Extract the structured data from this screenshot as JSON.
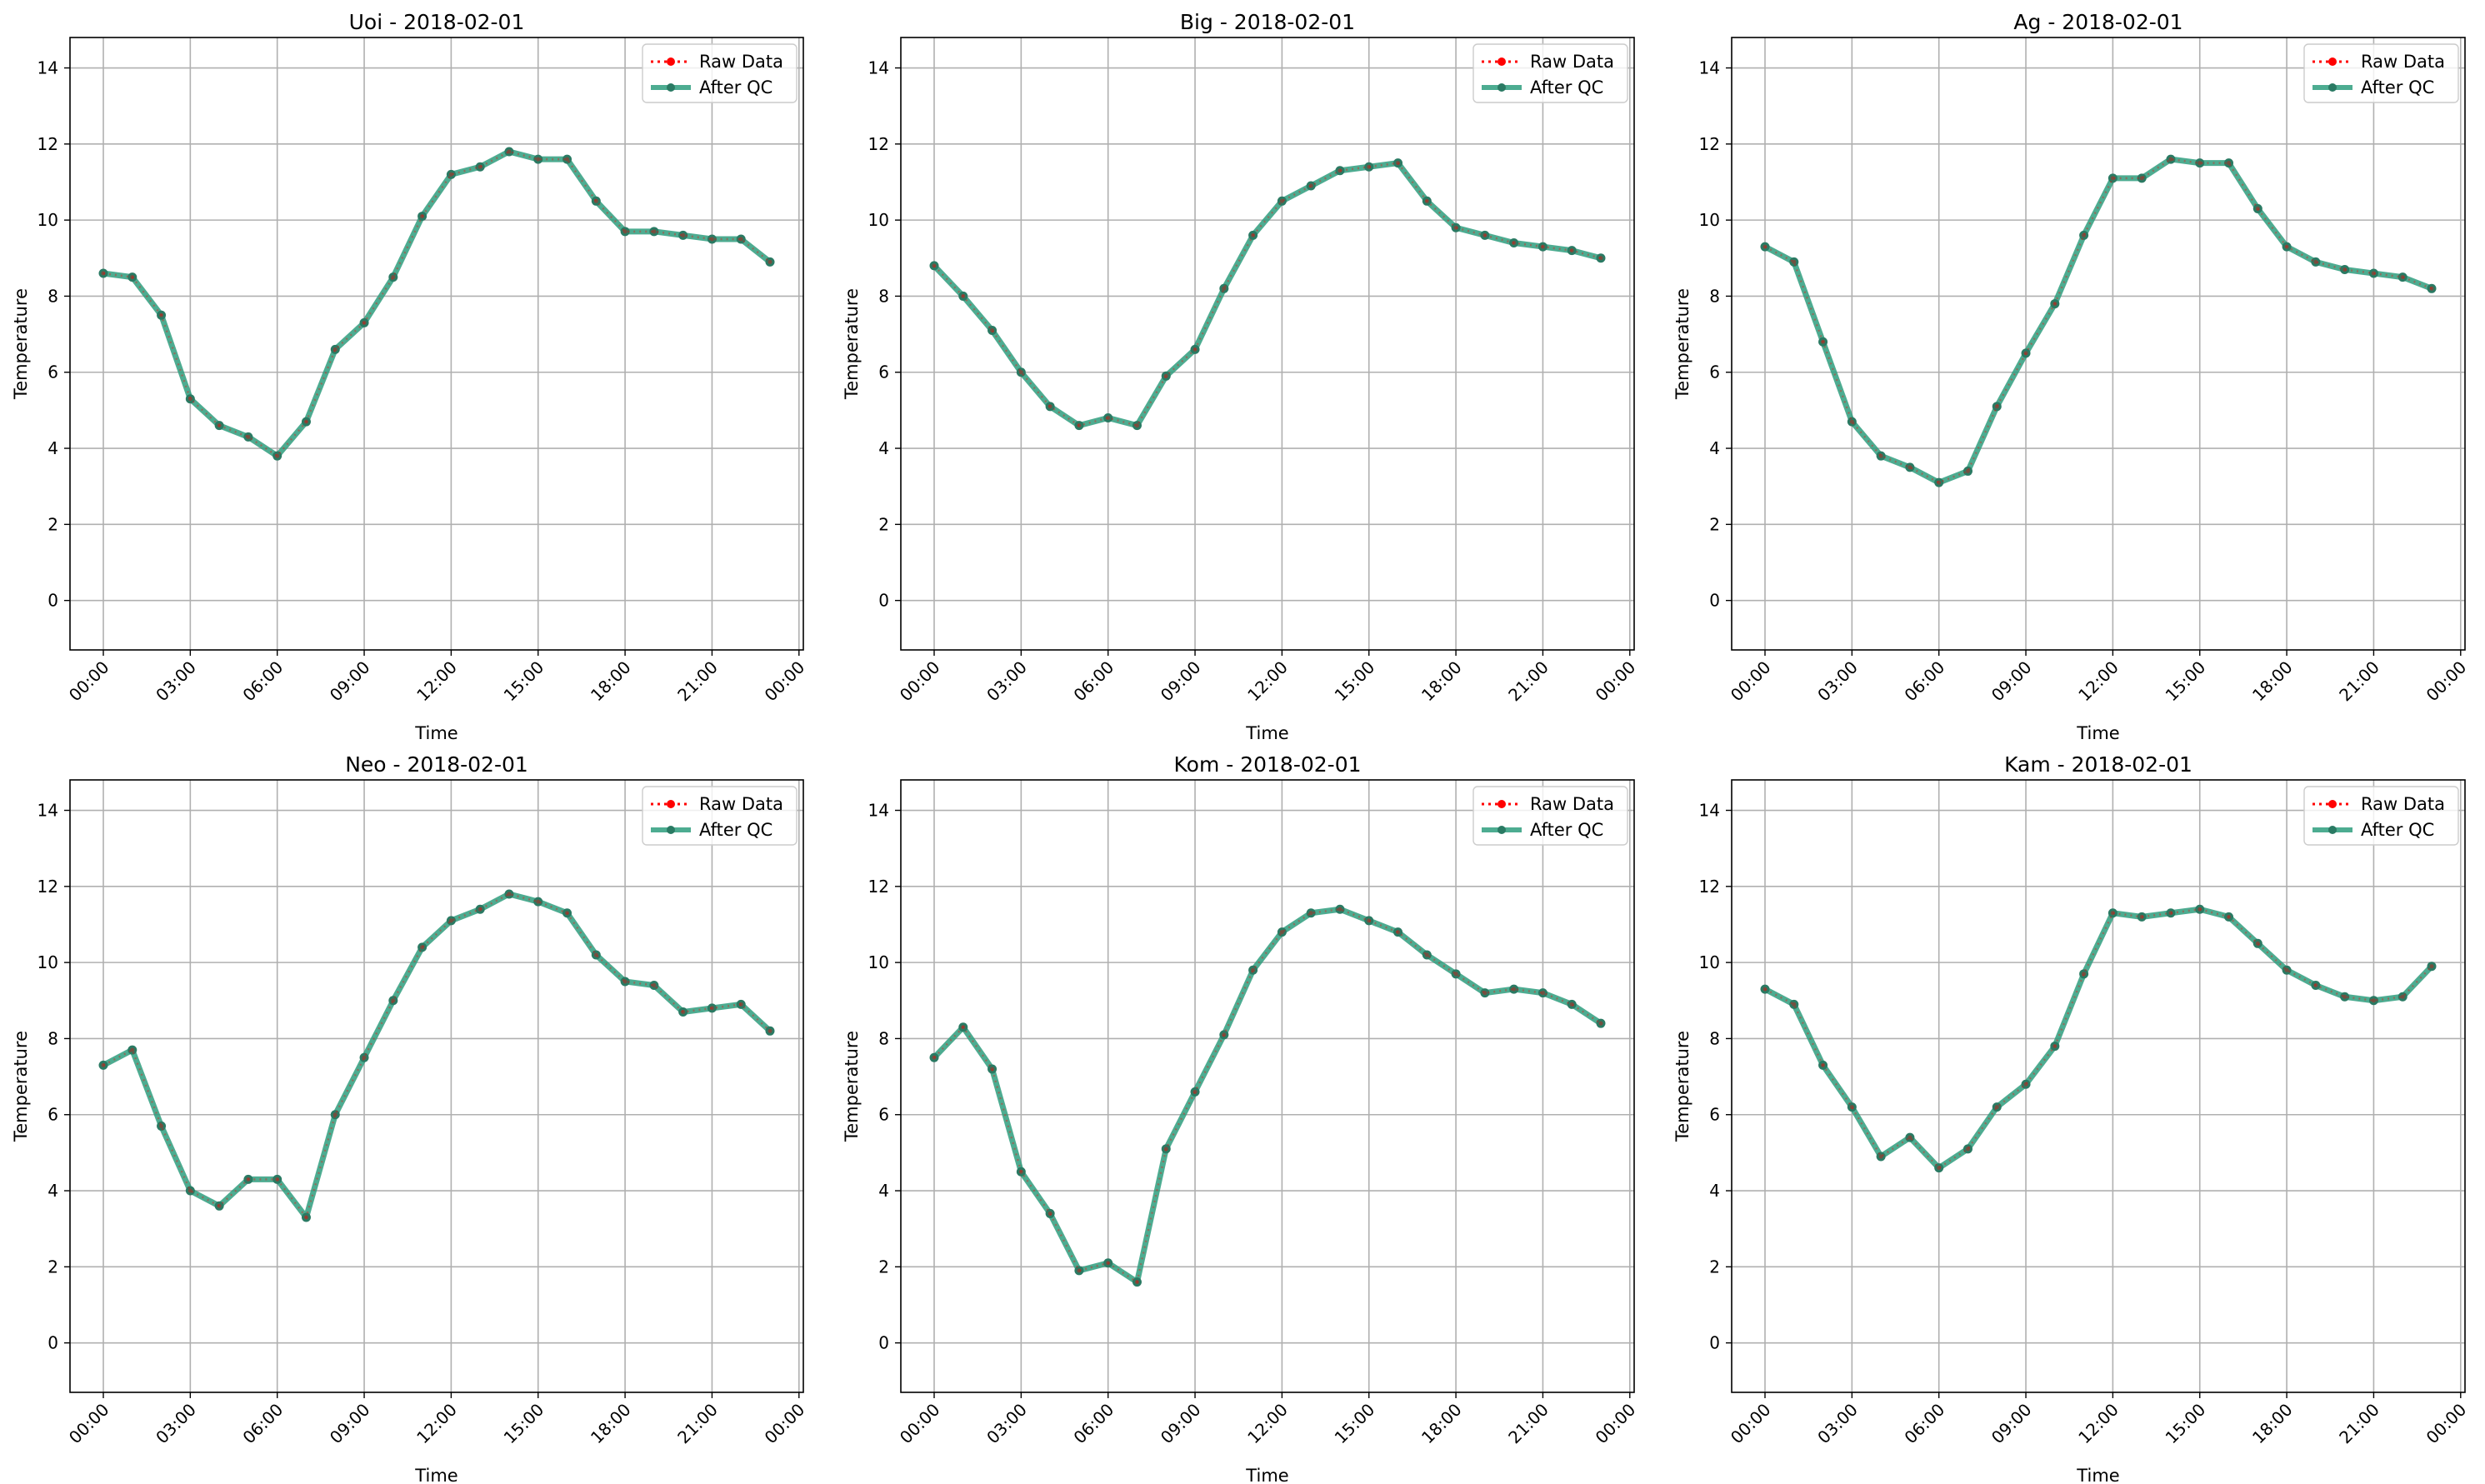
{
  "figure": {
    "legend_labels": [
      "Raw Data",
      "After QC"
    ],
    "colors": {
      "raw": "#ff0000",
      "qc": "#2e9e7e",
      "qc_marker": "#2a7a63",
      "grid": "#b0b0b0"
    }
  },
  "chart_data": [
    {
      "type": "line",
      "title": "Uoi - 2018-02-01",
      "xlabel": "Time",
      "ylabel": "Temperature",
      "xticks": [
        "00:00",
        "03:00",
        "06:00",
        "09:00",
        "12:00",
        "15:00",
        "18:00",
        "21:00",
        "00:00"
      ],
      "yticks": [
        "0",
        "2",
        "4",
        "6",
        "8",
        "10",
        "12",
        "14"
      ],
      "ylim": [
        -1.3,
        14.8
      ],
      "grid": true,
      "legend": "top-right",
      "series": [
        {
          "name": "Raw Data",
          "values": [
            8.6,
            8.5,
            7.5,
            5.3,
            4.6,
            4.3,
            3.8,
            4.7,
            6.6,
            7.3,
            8.5,
            10.1,
            11.2,
            11.4,
            11.8,
            11.6,
            11.6,
            10.5,
            9.7,
            9.7,
            9.6,
            9.5,
            9.5,
            8.9
          ]
        },
        {
          "name": "After QC",
          "values": [
            8.6,
            8.5,
            7.5,
            5.3,
            4.6,
            4.3,
            3.8,
            4.7,
            6.6,
            7.3,
            8.5,
            10.1,
            11.2,
            11.4,
            11.8,
            11.6,
            11.6,
            10.5,
            9.7,
            9.7,
            9.6,
            9.5,
            9.5,
            8.9
          ]
        }
      ]
    },
    {
      "type": "line",
      "title": "Big - 2018-02-01",
      "xlabel": "Time",
      "ylabel": "Temperature",
      "xticks": [
        "00:00",
        "03:00",
        "06:00",
        "09:00",
        "12:00",
        "15:00",
        "18:00",
        "21:00",
        "00:00"
      ],
      "yticks": [
        "0",
        "2",
        "4",
        "6",
        "8",
        "10",
        "12",
        "14"
      ],
      "ylim": [
        -1.3,
        14.8
      ],
      "grid": true,
      "legend": "top-right",
      "series": [
        {
          "name": "Raw Data",
          "values": [
            8.8,
            8.0,
            7.1,
            6.0,
            5.1,
            4.6,
            4.8,
            4.6,
            5.9,
            6.6,
            8.2,
            9.6,
            10.5,
            10.9,
            11.3,
            11.4,
            11.5,
            10.5,
            9.8,
            9.6,
            9.4,
            9.3,
            9.2,
            9.0
          ]
        },
        {
          "name": "After QC",
          "values": [
            8.8,
            8.0,
            7.1,
            6.0,
            5.1,
            4.6,
            4.8,
            4.6,
            5.9,
            6.6,
            8.2,
            9.6,
            10.5,
            10.9,
            11.3,
            11.4,
            11.5,
            10.5,
            9.8,
            9.6,
            9.4,
            9.3,
            9.2,
            9.0
          ]
        }
      ]
    },
    {
      "type": "line",
      "title": "Ag - 2018-02-01",
      "xlabel": "Time",
      "ylabel": "Temperature",
      "xticks": [
        "00:00",
        "03:00",
        "06:00",
        "09:00",
        "12:00",
        "15:00",
        "18:00",
        "21:00",
        "00:00"
      ],
      "yticks": [
        "0",
        "2",
        "4",
        "6",
        "8",
        "10",
        "12",
        "14"
      ],
      "ylim": [
        -1.3,
        14.8
      ],
      "grid": true,
      "legend": "top-right",
      "series": [
        {
          "name": "Raw Data",
          "values": [
            9.3,
            8.9,
            6.8,
            4.7,
            3.8,
            3.5,
            3.1,
            3.4,
            5.1,
            6.5,
            7.8,
            9.6,
            11.1,
            11.1,
            11.6,
            11.5,
            11.5,
            10.3,
            9.3,
            8.9,
            8.7,
            8.6,
            8.5,
            8.2
          ]
        },
        {
          "name": "After QC",
          "values": [
            9.3,
            8.9,
            6.8,
            4.7,
            3.8,
            3.5,
            3.1,
            3.4,
            5.1,
            6.5,
            7.8,
            9.6,
            11.1,
            11.1,
            11.6,
            11.5,
            11.5,
            10.3,
            9.3,
            8.9,
            8.7,
            8.6,
            8.5,
            8.2
          ]
        }
      ]
    },
    {
      "type": "line",
      "title": "Neo - 2018-02-01",
      "xlabel": "Time",
      "ylabel": "Temperature",
      "xticks": [
        "00:00",
        "03:00",
        "06:00",
        "09:00",
        "12:00",
        "15:00",
        "18:00",
        "21:00",
        "00:00"
      ],
      "yticks": [
        "0",
        "2",
        "4",
        "6",
        "8",
        "10",
        "12",
        "14"
      ],
      "ylim": [
        -1.3,
        14.8
      ],
      "grid": true,
      "legend": "top-right",
      "series": [
        {
          "name": "Raw Data",
          "values": [
            7.3,
            7.7,
            5.7,
            4.0,
            3.6,
            4.3,
            4.3,
            3.3,
            6.0,
            7.5,
            9.0,
            10.4,
            11.1,
            11.4,
            11.8,
            11.6,
            11.3,
            10.2,
            9.5,
            9.4,
            8.7,
            8.8,
            8.9,
            8.2
          ]
        },
        {
          "name": "After QC",
          "values": [
            7.3,
            7.7,
            5.7,
            4.0,
            3.6,
            4.3,
            4.3,
            3.3,
            6.0,
            7.5,
            9.0,
            10.4,
            11.1,
            11.4,
            11.8,
            11.6,
            11.3,
            10.2,
            9.5,
            9.4,
            8.7,
            8.8,
            8.9,
            8.2
          ]
        }
      ]
    },
    {
      "type": "line",
      "title": "Kom - 2018-02-01",
      "xlabel": "Time",
      "ylabel": "Temperature",
      "xticks": [
        "00:00",
        "03:00",
        "06:00",
        "09:00",
        "12:00",
        "15:00",
        "18:00",
        "21:00",
        "00:00"
      ],
      "yticks": [
        "0",
        "2",
        "4",
        "6",
        "8",
        "10",
        "12",
        "14"
      ],
      "ylim": [
        -1.3,
        14.8
      ],
      "grid": true,
      "legend": "top-right",
      "series": [
        {
          "name": "Raw Data",
          "values": [
            7.5,
            8.3,
            7.2,
            4.5,
            3.4,
            1.9,
            2.1,
            1.6,
            5.1,
            6.6,
            8.1,
            9.8,
            10.8,
            11.3,
            11.4,
            11.1,
            10.8,
            10.2,
            9.7,
            9.2,
            9.3,
            9.2,
            8.9,
            8.4
          ]
        },
        {
          "name": "After QC",
          "values": [
            7.5,
            8.3,
            7.2,
            4.5,
            3.4,
            1.9,
            2.1,
            1.6,
            5.1,
            6.6,
            8.1,
            9.8,
            10.8,
            11.3,
            11.4,
            11.1,
            10.8,
            10.2,
            9.7,
            9.2,
            9.3,
            9.2,
            8.9,
            8.4
          ]
        }
      ]
    },
    {
      "type": "line",
      "title": "Kam - 2018-02-01",
      "xlabel": "Time",
      "ylabel": "Temperature",
      "xticks": [
        "00:00",
        "03:00",
        "06:00",
        "09:00",
        "12:00",
        "15:00",
        "18:00",
        "21:00",
        "00:00"
      ],
      "yticks": [
        "0",
        "2",
        "4",
        "6",
        "8",
        "10",
        "12",
        "14"
      ],
      "ylim": [
        -1.3,
        14.8
      ],
      "grid": true,
      "legend": "top-right",
      "series": [
        {
          "name": "Raw Data",
          "values": [
            9.3,
            8.9,
            7.3,
            6.2,
            4.9,
            5.4,
            4.6,
            5.1,
            6.2,
            6.8,
            7.8,
            9.7,
            11.3,
            11.2,
            11.3,
            11.4,
            11.2,
            10.5,
            9.8,
            9.4,
            9.1,
            9.0,
            9.1,
            9.9
          ]
        },
        {
          "name": "After QC",
          "values": [
            9.3,
            8.9,
            7.3,
            6.2,
            4.9,
            5.4,
            4.6,
            5.1,
            6.2,
            6.8,
            7.8,
            9.7,
            11.3,
            11.2,
            11.3,
            11.4,
            11.2,
            10.5,
            9.8,
            9.4,
            9.1,
            9.0,
            9.1,
            9.9
          ]
        }
      ]
    }
  ]
}
